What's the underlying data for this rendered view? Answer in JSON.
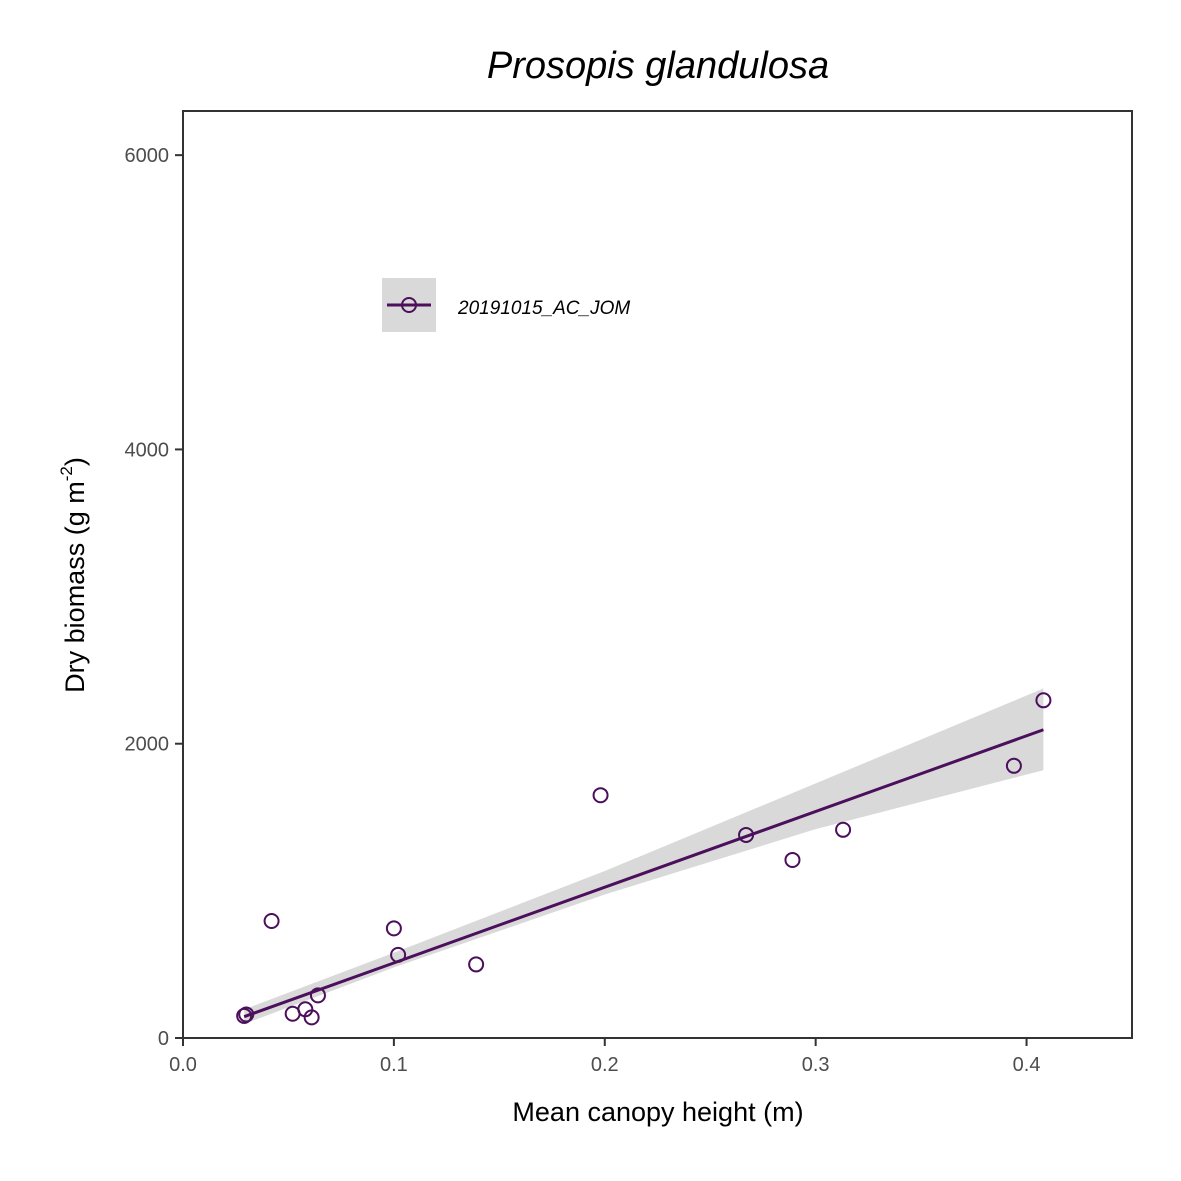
{
  "chart_data": {
    "type": "scatter",
    "title": "Prosopis glandulosa",
    "xlabel": "Mean canopy height (m)",
    "ylabel_main": "Dry biomass (g m",
    "ylabel_sup": "-2",
    "ylabel_end": ")",
    "xlim": [
      0.0,
      0.45
    ],
    "ylim": [
      0,
      6300
    ],
    "x_ticks": [
      0.0,
      0.1,
      0.2,
      0.3,
      0.4
    ],
    "x_tick_labels": [
      "0.0",
      "0.1",
      "0.2",
      "0.3",
      "0.4"
    ],
    "y_ticks": [
      0,
      2000,
      4000,
      6000
    ],
    "y_tick_labels": [
      "0",
      "2000",
      "4000",
      "6000"
    ],
    "grid": false,
    "legend_position": "top-left",
    "series": [
      {
        "name": "20191015_AC_JOM",
        "color": "#4b0f5c",
        "points": [
          {
            "x": 0.029,
            "y": 150
          },
          {
            "x": 0.03,
            "y": 160
          },
          {
            "x": 0.042,
            "y": 795
          },
          {
            "x": 0.052,
            "y": 165
          },
          {
            "x": 0.058,
            "y": 195
          },
          {
            "x": 0.061,
            "y": 140
          },
          {
            "x": 0.064,
            "y": 290
          },
          {
            "x": 0.1,
            "y": 745
          },
          {
            "x": 0.102,
            "y": 565
          },
          {
            "x": 0.139,
            "y": 500
          },
          {
            "x": 0.198,
            "y": 1650
          },
          {
            "x": 0.267,
            "y": 1380
          },
          {
            "x": 0.289,
            "y": 1210
          },
          {
            "x": 0.313,
            "y": 1415
          },
          {
            "x": 0.394,
            "y": 1850
          },
          {
            "x": 0.408,
            "y": 2295
          }
        ],
        "fit": {
          "x_range": [
            0.029,
            0.408
          ],
          "y_at_start": 145,
          "y_at_end": 2095
        },
        "confidence_band": {
          "x": [
            0.029,
            0.1,
            0.2,
            0.3,
            0.408
          ],
          "lower": [
            95,
            480,
            975,
            1420,
            1820
          ],
          "upper": [
            195,
            580,
            1135,
            1730,
            2375
          ]
        }
      }
    ]
  }
}
